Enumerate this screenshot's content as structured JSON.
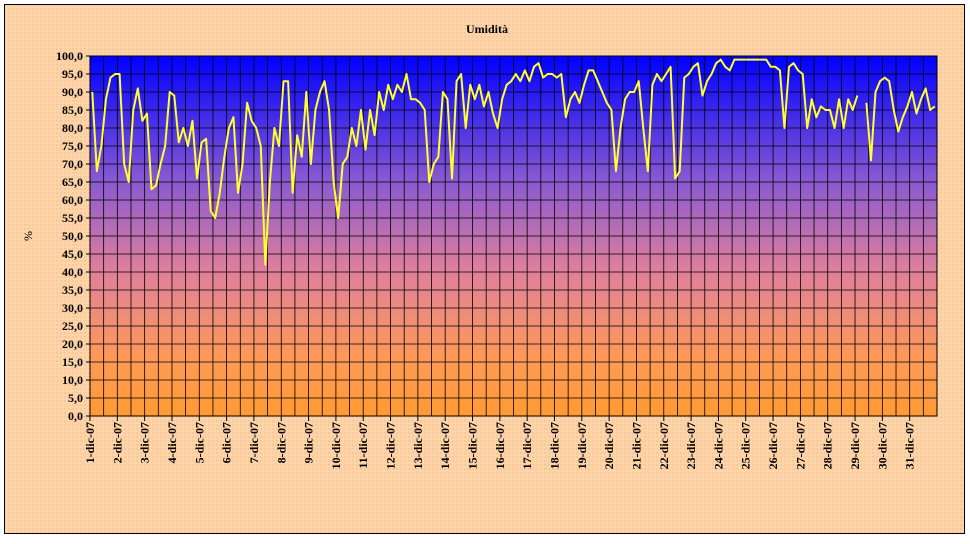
{
  "chart_data": {
    "type": "line",
    "title": "Umidità",
    "y_label": "%",
    "categories": [
      "1-dic-07",
      null,
      null,
      null,
      null,
      null,
      "2-dic-07",
      null,
      null,
      null,
      null,
      null,
      "3-dic-07",
      null,
      null,
      null,
      null,
      null,
      "4-dic-07",
      null,
      null,
      null,
      null,
      null,
      "5-dic-07",
      null,
      null,
      null,
      null,
      null,
      "6-dic-07",
      null,
      null,
      null,
      null,
      null,
      "7-dic-07",
      null,
      null,
      null,
      null,
      null,
      "8-dic-07",
      null,
      null,
      null,
      null,
      null,
      "9-dic-07",
      null,
      null,
      null,
      null,
      null,
      "10-dic-07",
      null,
      null,
      null,
      null,
      null,
      "11-dic-07",
      null,
      null,
      null,
      null,
      null,
      "12-dic-07",
      null,
      null,
      null,
      null,
      null,
      "13-dic-07",
      null,
      null,
      null,
      null,
      null,
      "14-dic-07",
      null,
      null,
      null,
      null,
      null,
      "15-dic-07",
      null,
      null,
      null,
      null,
      null,
      "16-dic-07",
      null,
      null,
      null,
      null,
      null,
      "17-dic-07",
      null,
      null,
      null,
      null,
      null,
      "18-dic-07",
      null,
      null,
      null,
      null,
      null,
      "19-dic-07",
      null,
      null,
      null,
      null,
      null,
      "20-dic-07",
      null,
      null,
      null,
      null,
      null,
      "21-dic-07",
      null,
      null,
      null,
      null,
      null,
      "22-dic-07",
      null,
      null,
      null,
      null,
      null,
      "23-dic-07",
      null,
      null,
      null,
      null,
      null,
      "24-dic-07",
      null,
      null,
      null,
      null,
      null,
      "25-dic-07",
      null,
      null,
      null,
      null,
      null,
      "26-dic-07",
      null,
      null,
      null,
      null,
      null,
      "27-dic-07",
      null,
      null,
      null,
      null,
      null,
      "28-dic-07",
      null,
      null,
      null,
      null,
      null,
      "29-dic-07",
      null,
      null,
      null,
      null,
      null,
      "30-dic-07",
      null,
      null,
      null,
      null,
      null,
      "31-dic-07",
      null,
      null,
      null,
      null,
      null
    ],
    "series": [
      {
        "name": "Umidità",
        "color": "#ffff33",
        "values": [
          90,
          68,
          75,
          88,
          94,
          95,
          95,
          70,
          65,
          85,
          91,
          82,
          84,
          63,
          64,
          70,
          75,
          90,
          89,
          76,
          80,
          75,
          82,
          66,
          76,
          77,
          57,
          55,
          62,
          72,
          80,
          83,
          62,
          70,
          87,
          82,
          80,
          75,
          42,
          65,
          80,
          75,
          93,
          93,
          62,
          78,
          72,
          90,
          70,
          85,
          90,
          93,
          85,
          65,
          55,
          70,
          72,
          80,
          75,
          85,
          74,
          85,
          78,
          90,
          85,
          92,
          88,
          92,
          90,
          95,
          88,
          88,
          87,
          85,
          65,
          70,
          72,
          90,
          88,
          66,
          93,
          95,
          80,
          92,
          88,
          92,
          86,
          90,
          84,
          80,
          88,
          92,
          93,
          95,
          93,
          96,
          93,
          97,
          98,
          94,
          95,
          95,
          94,
          95,
          83,
          88,
          90,
          87,
          92,
          96,
          96,
          93,
          90,
          87,
          85,
          68,
          80,
          88,
          90,
          90,
          93,
          80,
          68,
          92,
          95,
          93,
          95,
          97,
          66,
          68,
          94,
          95,
          97,
          98,
          89,
          93,
          95,
          98,
          99,
          97,
          96,
          99,
          99,
          99,
          99,
          99,
          99,
          99,
          99,
          97,
          97,
          96,
          80,
          97,
          98,
          96,
          95,
          80,
          88,
          83,
          86,
          85,
          85,
          80,
          88,
          80,
          88,
          85,
          89,
          null,
          87,
          71,
          90,
          93,
          94,
          93,
          85,
          79,
          83,
          86,
          90,
          84,
          88,
          91,
          85,
          86
        ]
      }
    ],
    "ylim": [
      0,
      100
    ],
    "yticks": [
      {
        "value": 0,
        "label": "0,0"
      },
      {
        "value": 5,
        "label": "5,0"
      },
      {
        "value": 10,
        "label": "10,0"
      },
      {
        "value": 15,
        "label": "15,0"
      },
      {
        "value": 20,
        "label": "20,0"
      },
      {
        "value": 25,
        "label": "25,0"
      },
      {
        "value": 30,
        "label": "30,0"
      },
      {
        "value": 35,
        "label": "35,0"
      },
      {
        "value": 40,
        "label": "40,0"
      },
      {
        "value": 45,
        "label": "45,0"
      },
      {
        "value": 50,
        "label": "50,0"
      },
      {
        "value": 55,
        "label": "55,0"
      },
      {
        "value": 60,
        "label": "60,0"
      },
      {
        "value": 65,
        "label": "65,0"
      },
      {
        "value": 70,
        "label": "70,0"
      },
      {
        "value": 75,
        "label": "75,0"
      },
      {
        "value": 80,
        "label": "80,0"
      },
      {
        "value": 85,
        "label": "85,0"
      },
      {
        "value": 90,
        "label": "90,0"
      },
      {
        "value": 95,
        "label": "95,0"
      },
      {
        "value": 100,
        "label": "100,0"
      }
    ],
    "grid": true
  }
}
